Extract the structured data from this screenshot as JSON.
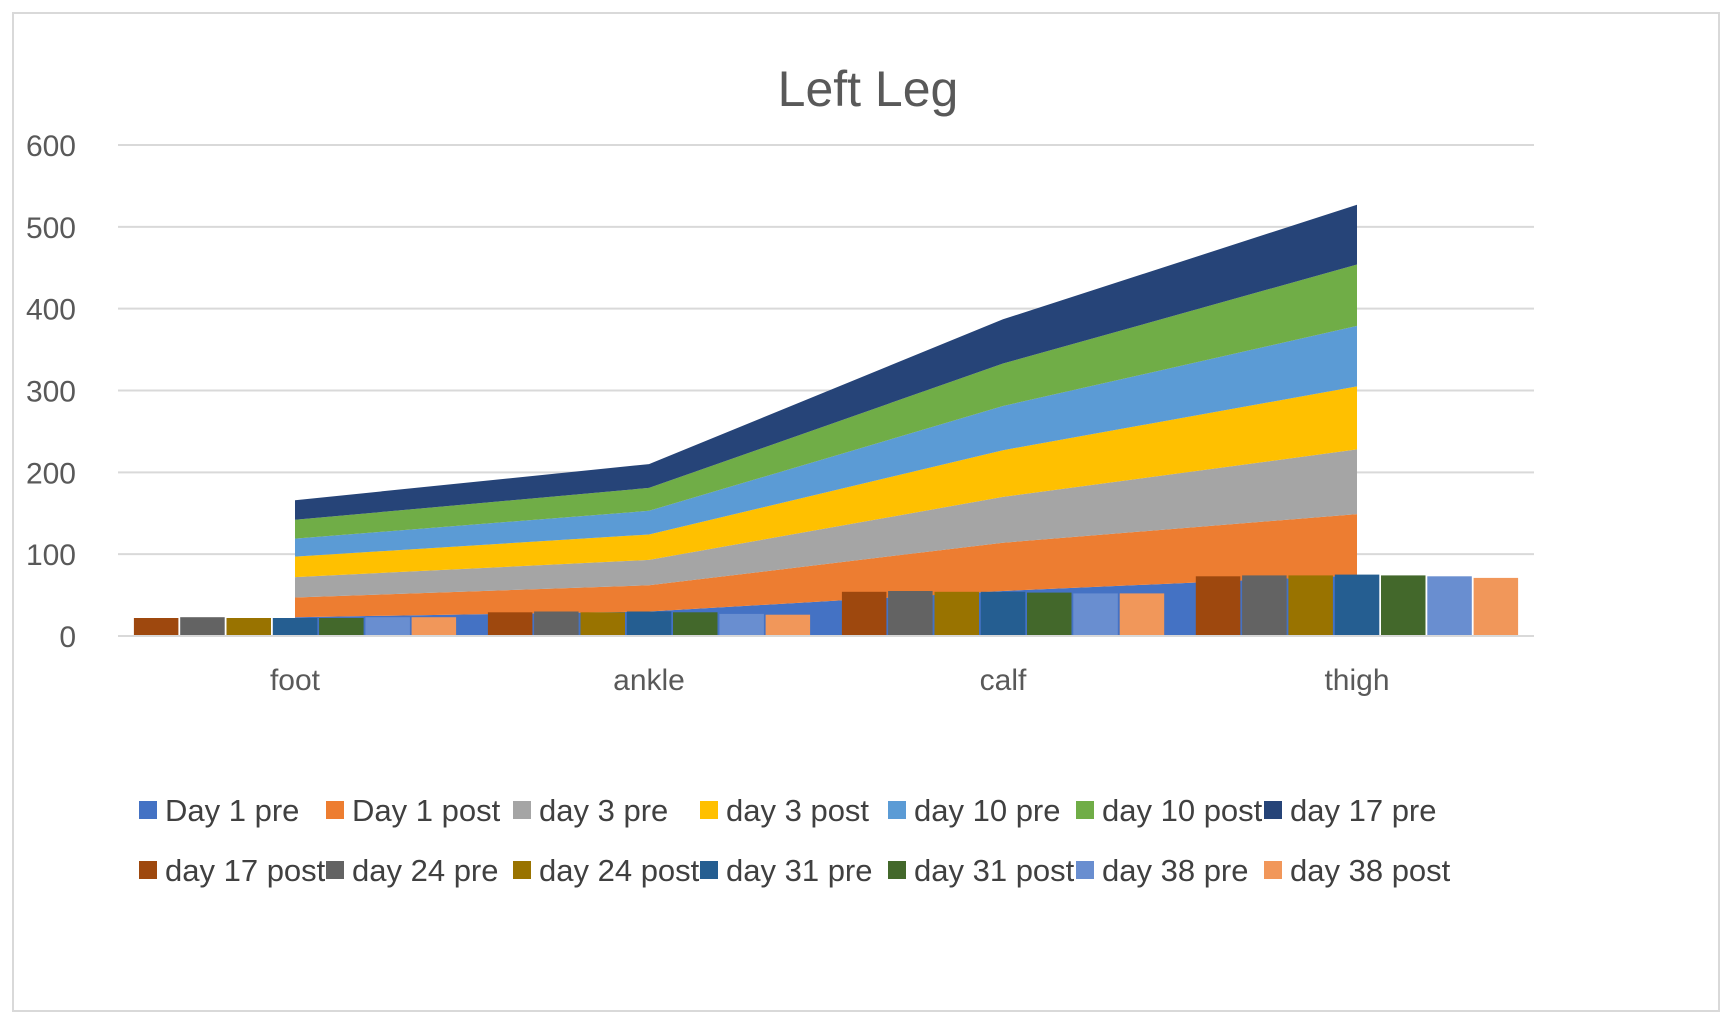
{
  "chart_data": {
    "type": "area",
    "title": "Left Leg",
    "xlabel": "",
    "ylabel": "",
    "categories": [
      "foot",
      "ankle",
      "calf",
      "thigh"
    ],
    "ylim": [
      0,
      600
    ],
    "yticks": [
      0,
      100,
      200,
      300,
      400,
      500,
      600
    ],
    "grid": true,
    "legend_position": "bottom",
    "stacked_area_series": [
      {
        "name": "Day 1 pre",
        "color": "#4472C4",
        "values": [
          23,
          30,
          55,
          74
        ]
      },
      {
        "name": "Day 1 post",
        "color": "#ED7D31",
        "values": [
          24,
          32,
          59,
          75
        ]
      },
      {
        "name": "day 3 pre",
        "color": "#A5A5A5",
        "values": [
          25,
          31,
          56,
          79
        ]
      },
      {
        "name": "day 3 post",
        "color": "#FFC000",
        "values": [
          25,
          31,
          57,
          77
        ]
      },
      {
        "name": "day 10 pre",
        "color": "#5B9BD5",
        "values": [
          22,
          29,
          54,
          74
        ]
      },
      {
        "name": "day 10 post",
        "color": "#70AD47",
        "values": [
          23,
          28,
          52,
          75
        ]
      },
      {
        "name": "day 17 pre",
        "color": "#264478",
        "values": [
          24,
          29,
          54,
          73
        ]
      }
    ],
    "clustered_column_series": [
      {
        "name": "day 17 post",
        "color": "#9E480E",
        "values": [
          22,
          29,
          54,
          73
        ]
      },
      {
        "name": "day 24 pre",
        "color": "#636363",
        "values": [
          23,
          30,
          55,
          74
        ]
      },
      {
        "name": "day 24 post",
        "color": "#997300",
        "values": [
          22,
          29,
          54,
          74
        ]
      },
      {
        "name": "day 31 pre",
        "color": "#255E91",
        "values": [
          22,
          30,
          54,
          75
        ]
      },
      {
        "name": "day 31 post",
        "color": "#43682B",
        "values": [
          22,
          29,
          53,
          74
        ]
      },
      {
        "name": "day 38 pre",
        "color": "#698ED0",
        "values": [
          23,
          27,
          52,
          73
        ]
      },
      {
        "name": "day 38 post",
        "color": "#F1975A",
        "values": [
          23,
          26,
          52,
          71
        ]
      }
    ]
  }
}
